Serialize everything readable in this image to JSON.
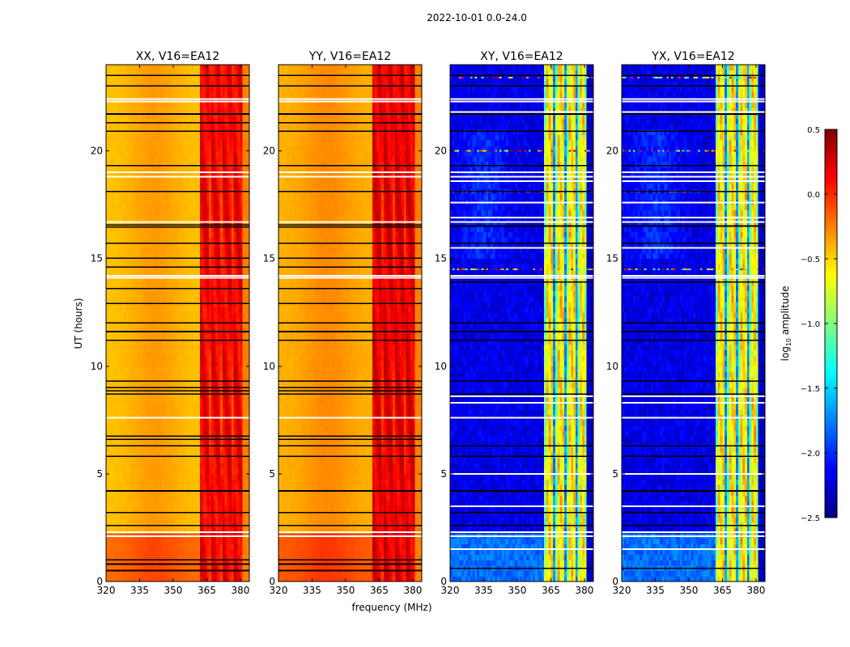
{
  "chart_data": {
    "type": "heatmap",
    "title": "2022-10-01 0.0-24.0",
    "xlabel": "frequency (MHz)",
    "ylabel": "UT (hours)",
    "xlim": [
      320,
      384
    ],
    "ylim": [
      0,
      24
    ],
    "xticks": [
      "320",
      "335",
      "350",
      "365",
      "380"
    ],
    "yticks": [
      "0",
      "5",
      "10",
      "15",
      "20"
    ],
    "colorbar": {
      "label": "log10 amplitude",
      "label_main": "log",
      "label_sub": "10",
      "label_rest": " amplitude",
      "range": [
        -2.5,
        0.5
      ],
      "colormap": "jet",
      "ticks": [
        "0.5",
        "0.0",
        "−0.5",
        "−1.0",
        "−1.5",
        "−2.0",
        "−2.5"
      ]
    },
    "panels": [
      {
        "title": "XX, V16=EA12",
        "kind": "parallel",
        "low_band_mean": -0.45,
        "high_band_mean": 0.15,
        "early_hours_boost": 0.25,
        "flag_black_ut": [
          0.5,
          0.8,
          1.0,
          2.6,
          3.2,
          4.2,
          5.8,
          6.3,
          6.6,
          6.75,
          8.7,
          8.85,
          9.0,
          9.3,
          11.2,
          11.6,
          12.0,
          12.9,
          13.6,
          14.6,
          15.0,
          15.7,
          16.45,
          16.55,
          18.1,
          19.3,
          20.9,
          21.3,
          21.7,
          23.0,
          23.5
        ],
        "flag_white_ut": [
          2.1,
          2.3,
          7.6,
          14.1,
          14.2,
          16.7,
          18.8,
          19.0,
          22.3,
          22.4
        ]
      },
      {
        "title": "YY, V16=EA12",
        "kind": "parallel",
        "low_band_mean": -0.4,
        "high_band_mean": 0.2,
        "early_hours_boost": 0.25,
        "flag_black_ut": [
          0.5,
          0.8,
          1.0,
          2.6,
          3.2,
          4.2,
          5.8,
          6.3,
          6.6,
          6.75,
          8.7,
          8.85,
          9.0,
          9.3,
          11.2,
          11.6,
          12.0,
          12.9,
          13.6,
          14.6,
          15.0,
          15.7,
          16.45,
          16.55,
          18.1,
          19.3,
          20.9,
          21.3,
          21.7,
          23.0,
          23.5
        ],
        "flag_white_ut": [
          2.1,
          2.3,
          7.6,
          14.1,
          14.2,
          16.7,
          18.8,
          19.0,
          22.3,
          22.4
        ]
      },
      {
        "title": "XY, V16=EA12",
        "kind": "cross",
        "low_band_mean": -2.2,
        "high_band_mean": -0.55,
        "early_hours_boost": 0.4,
        "flag_black_ut": [
          0.6,
          2.6,
          3.2,
          4.2,
          5.8,
          6.3,
          8.7,
          9.3,
          11.2,
          11.6,
          12.0,
          13.9,
          15.7,
          16.5,
          18.1,
          19.3,
          20.9,
          21.7,
          23.0,
          23.5
        ],
        "flag_white_ut": [
          1.5,
          2.1,
          2.3,
          3.5,
          5.0,
          7.6,
          8.3,
          8.6,
          14.1,
          14.2,
          15.5,
          16.7,
          16.9,
          17.6,
          18.6,
          18.8,
          19.0,
          21.8,
          22.3,
          22.4
        ],
        "noisy_rows_ut": [
          14.5,
          17.6,
          18.1,
          20.0,
          23.4
        ]
      },
      {
        "title": "YX, V16=EA12",
        "kind": "cross",
        "low_band_mean": -2.2,
        "high_band_mean": -0.55,
        "early_hours_boost": 0.4,
        "flag_black_ut": [
          0.6,
          2.6,
          3.2,
          4.2,
          5.8,
          6.3,
          8.7,
          9.3,
          11.2,
          11.6,
          12.0,
          13.9,
          15.7,
          16.5,
          18.1,
          19.3,
          20.9,
          21.7,
          23.0,
          23.5
        ],
        "flag_white_ut": [
          1.5,
          2.1,
          2.3,
          3.5,
          5.0,
          7.6,
          8.3,
          8.6,
          14.1,
          14.2,
          15.5,
          16.7,
          16.9,
          17.6,
          18.6,
          18.8,
          19.0,
          21.8,
          22.3,
          22.4
        ],
        "noisy_rows_ut": [
          14.5,
          17.6,
          18.1,
          20.0,
          23.4
        ]
      }
    ]
  }
}
